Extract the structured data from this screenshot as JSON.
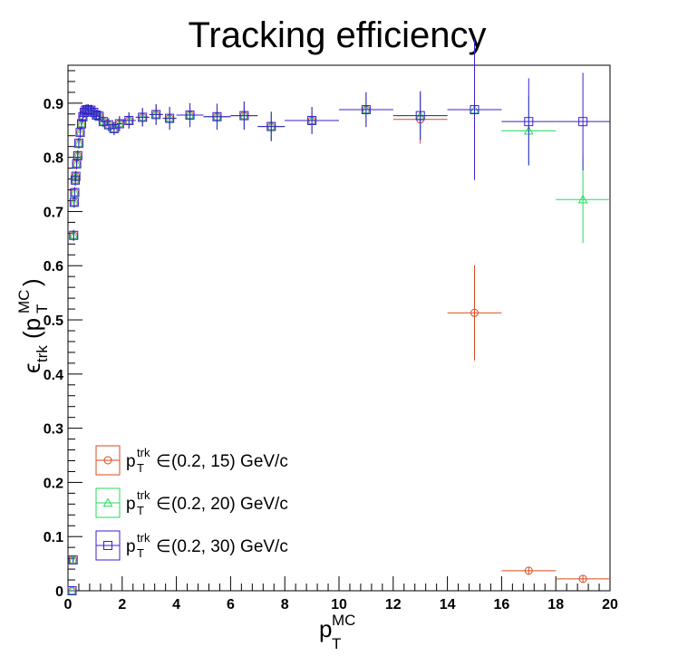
{
  "chart_data": {
    "type": "scatter",
    "title": "Tracking efficiency",
    "xlabel": {
      "main": "p",
      "sup": "MC",
      "sub": "T"
    },
    "ylabel": {
      "eps": "ϵ",
      "eps_sub": "trk",
      "open": "(p",
      "sup": "MC",
      "sub": "T",
      "close": ")"
    },
    "xlim": [
      0,
      20
    ],
    "ylim": [
      0,
      0.97
    ],
    "xticks": [
      0,
      2,
      4,
      6,
      8,
      10,
      12,
      14,
      16,
      18,
      20
    ],
    "yticks": [
      0,
      0.1,
      0.2,
      0.3,
      0.4,
      0.5,
      0.6,
      0.7,
      0.8,
      0.9
    ],
    "grid": false,
    "legend_position": "bottom-left",
    "series": [
      {
        "name": "(0.2, 15) GeV/c",
        "label_prefix": {
          "main": "p",
          "sup": "trk",
          "sub": "T",
          "in": "∈"
        },
        "marker": "circle",
        "color": "#d94a1e",
        "points": [
          {
            "x": 0.15,
            "y": 0.0,
            "xerr": 0.05,
            "yerr": 0.0
          },
          {
            "x": 0.19,
            "y": 0.057,
            "xerr": 0.01,
            "yerr": 0.005
          },
          {
            "x": 0.21,
            "y": 0.656,
            "xerr": 0.01,
            "yerr": 0.01
          },
          {
            "x": 0.23,
            "y": 0.717,
            "xerr": 0.01,
            "yerr": 0.01
          },
          {
            "x": 0.25,
            "y": 0.735,
            "xerr": 0.01,
            "yerr": 0.01
          },
          {
            "x": 0.27,
            "y": 0.758,
            "xerr": 0.01,
            "yerr": 0.01
          },
          {
            "x": 0.29,
            "y": 0.765,
            "xerr": 0.01,
            "yerr": 0.01
          },
          {
            "x": 0.32,
            "y": 0.788,
            "xerr": 0.02,
            "yerr": 0.01
          },
          {
            "x": 0.36,
            "y": 0.803,
            "xerr": 0.02,
            "yerr": 0.01
          },
          {
            "x": 0.4,
            "y": 0.826,
            "xerr": 0.02,
            "yerr": 0.01
          },
          {
            "x": 0.45,
            "y": 0.846,
            "xerr": 0.025,
            "yerr": 0.01
          },
          {
            "x": 0.5,
            "y": 0.862,
            "xerr": 0.025,
            "yerr": 0.01
          },
          {
            "x": 0.55,
            "y": 0.875,
            "xerr": 0.025,
            "yerr": 0.01
          },
          {
            "x": 0.6,
            "y": 0.883,
            "xerr": 0.025,
            "yerr": 0.01
          },
          {
            "x": 0.65,
            "y": 0.887,
            "xerr": 0.025,
            "yerr": 0.01
          },
          {
            "x": 0.7,
            "y": 0.888,
            "xerr": 0.025,
            "yerr": 0.01
          },
          {
            "x": 0.75,
            "y": 0.888,
            "xerr": 0.025,
            "yerr": 0.01
          },
          {
            "x": 0.85,
            "y": 0.887,
            "xerr": 0.05,
            "yerr": 0.01
          },
          {
            "x": 0.95,
            "y": 0.883,
            "xerr": 0.05,
            "yerr": 0.01
          },
          {
            "x": 1.05,
            "y": 0.878,
            "xerr": 0.05,
            "yerr": 0.01
          },
          {
            "x": 1.15,
            "y": 0.876,
            "xerr": 0.05,
            "yerr": 0.01
          },
          {
            "x": 1.3,
            "y": 0.866,
            "xerr": 0.1,
            "yerr": 0.01
          },
          {
            "x": 1.5,
            "y": 0.86,
            "xerr": 0.1,
            "yerr": 0.012
          },
          {
            "x": 1.7,
            "y": 0.853,
            "xerr": 0.1,
            "yerr": 0.012
          },
          {
            "x": 1.9,
            "y": 0.862,
            "xerr": 0.1,
            "yerr": 0.014
          },
          {
            "x": 2.25,
            "y": 0.868,
            "xerr": 0.25,
            "yerr": 0.015
          },
          {
            "x": 2.75,
            "y": 0.874,
            "xerr": 0.25,
            "yerr": 0.017
          },
          {
            "x": 3.25,
            "y": 0.879,
            "xerr": 0.25,
            "yerr": 0.019
          },
          {
            "x": 3.75,
            "y": 0.872,
            "xerr": 0.25,
            "yerr": 0.021
          },
          {
            "x": 4.5,
            "y": 0.878,
            "xerr": 0.5,
            "yerr": 0.022
          },
          {
            "x": 5.5,
            "y": 0.875,
            "xerr": 0.5,
            "yerr": 0.024
          },
          {
            "x": 6.5,
            "y": 0.877,
            "xerr": 0.5,
            "yerr": 0.026
          },
          {
            "x": 7.5,
            "y": 0.857,
            "xerr": 0.5,
            "yerr": 0.027
          },
          {
            "x": 9.0,
            "y": 0.868,
            "xerr": 1.0,
            "yerr": 0.025
          },
          {
            "x": 11.0,
            "y": 0.888,
            "xerr": 1.0,
            "yerr": 0.032
          },
          {
            "x": 13.0,
            "y": 0.87,
            "xerr": 1.0,
            "yerr": 0.045
          },
          {
            "x": 15.0,
            "y": 0.513,
            "xerr": 1.0,
            "yerr": 0.088
          },
          {
            "x": 17.0,
            "y": 0.037,
            "xerr": 1.0,
            "yerr": 0.007
          },
          {
            "x": 19.0,
            "y": 0.022,
            "xerr": 1.0,
            "yerr": 0.006
          }
        ]
      },
      {
        "name": "(0.2, 20) GeV/c",
        "label_prefix": {
          "main": "p",
          "sup": "trk",
          "sub": "T",
          "in": "∈"
        },
        "marker": "triangle",
        "color": "#22dd5a",
        "points": [
          {
            "x": 0.15,
            "y": 0.0,
            "xerr": 0.05,
            "yerr": 0.0
          },
          {
            "x": 0.19,
            "y": 0.057,
            "xerr": 0.01,
            "yerr": 0.005
          },
          {
            "x": 0.21,
            "y": 0.656,
            "xerr": 0.01,
            "yerr": 0.01
          },
          {
            "x": 0.23,
            "y": 0.717,
            "xerr": 0.01,
            "yerr": 0.01
          },
          {
            "x": 0.25,
            "y": 0.735,
            "xerr": 0.01,
            "yerr": 0.01
          },
          {
            "x": 0.27,
            "y": 0.758,
            "xerr": 0.01,
            "yerr": 0.01
          },
          {
            "x": 0.29,
            "y": 0.765,
            "xerr": 0.01,
            "yerr": 0.01
          },
          {
            "x": 0.32,
            "y": 0.788,
            "xerr": 0.02,
            "yerr": 0.01
          },
          {
            "x": 0.36,
            "y": 0.803,
            "xerr": 0.02,
            "yerr": 0.01
          },
          {
            "x": 0.4,
            "y": 0.826,
            "xerr": 0.02,
            "yerr": 0.01
          },
          {
            "x": 0.45,
            "y": 0.846,
            "xerr": 0.025,
            "yerr": 0.01
          },
          {
            "x": 0.5,
            "y": 0.862,
            "xerr": 0.025,
            "yerr": 0.01
          },
          {
            "x": 0.55,
            "y": 0.875,
            "xerr": 0.025,
            "yerr": 0.01
          },
          {
            "x": 0.6,
            "y": 0.883,
            "xerr": 0.025,
            "yerr": 0.01
          },
          {
            "x": 0.65,
            "y": 0.887,
            "xerr": 0.025,
            "yerr": 0.01
          },
          {
            "x": 0.7,
            "y": 0.888,
            "xerr": 0.025,
            "yerr": 0.01
          },
          {
            "x": 0.75,
            "y": 0.888,
            "xerr": 0.025,
            "yerr": 0.01
          },
          {
            "x": 0.85,
            "y": 0.887,
            "xerr": 0.05,
            "yerr": 0.01
          },
          {
            "x": 0.95,
            "y": 0.883,
            "xerr": 0.05,
            "yerr": 0.01
          },
          {
            "x": 1.05,
            "y": 0.878,
            "xerr": 0.05,
            "yerr": 0.01
          },
          {
            "x": 1.15,
            "y": 0.876,
            "xerr": 0.05,
            "yerr": 0.01
          },
          {
            "x": 1.3,
            "y": 0.866,
            "xerr": 0.1,
            "yerr": 0.01
          },
          {
            "x": 1.5,
            "y": 0.86,
            "xerr": 0.1,
            "yerr": 0.012
          },
          {
            "x": 1.7,
            "y": 0.853,
            "xerr": 0.1,
            "yerr": 0.012
          },
          {
            "x": 1.9,
            "y": 0.862,
            "xerr": 0.1,
            "yerr": 0.014
          },
          {
            "x": 2.25,
            "y": 0.868,
            "xerr": 0.25,
            "yerr": 0.015
          },
          {
            "x": 2.75,
            "y": 0.874,
            "xerr": 0.25,
            "yerr": 0.017
          },
          {
            "x": 3.25,
            "y": 0.879,
            "xerr": 0.25,
            "yerr": 0.019
          },
          {
            "x": 3.75,
            "y": 0.872,
            "xerr": 0.25,
            "yerr": 0.021
          },
          {
            "x": 4.5,
            "y": 0.878,
            "xerr": 0.5,
            "yerr": 0.022
          },
          {
            "x": 5.5,
            "y": 0.875,
            "xerr": 0.5,
            "yerr": 0.024
          },
          {
            "x": 6.5,
            "y": 0.877,
            "xerr": 0.5,
            "yerr": 0.026
          },
          {
            "x": 7.5,
            "y": 0.857,
            "xerr": 0.5,
            "yerr": 0.027
          },
          {
            "x": 9.0,
            "y": 0.868,
            "xerr": 1.0,
            "yerr": 0.025
          },
          {
            "x": 11.0,
            "y": 0.888,
            "xerr": 1.0,
            "yerr": 0.032
          },
          {
            "x": 13.0,
            "y": 0.877,
            "xerr": 1.0,
            "yerr": 0.045
          },
          {
            "x": 15.0,
            "y": 0.888,
            "xerr": 1.0,
            "yerr": 0.065
          },
          {
            "x": 17.0,
            "y": 0.849,
            "xerr": 1.0,
            "yerr": 0.065
          },
          {
            "x": 19.0,
            "y": 0.722,
            "xerr": 1.0,
            "yerr": 0.08
          }
        ]
      },
      {
        "name": "(0.2, 30) GeV/c",
        "label_prefix": {
          "main": "p",
          "sup": "trk",
          "sub": "T",
          "in": "∈"
        },
        "marker": "square",
        "color": "#3a1fd4",
        "points": [
          {
            "x": 0.15,
            "y": 0.0,
            "xerr": 0.05,
            "yerr": 0.0
          },
          {
            "x": 0.19,
            "y": 0.057,
            "xerr": 0.01,
            "yerr": 0.005
          },
          {
            "x": 0.21,
            "y": 0.656,
            "xerr": 0.01,
            "yerr": 0.01
          },
          {
            "x": 0.23,
            "y": 0.717,
            "xerr": 0.01,
            "yerr": 0.01
          },
          {
            "x": 0.25,
            "y": 0.735,
            "xerr": 0.01,
            "yerr": 0.01
          },
          {
            "x": 0.27,
            "y": 0.758,
            "xerr": 0.01,
            "yerr": 0.01
          },
          {
            "x": 0.29,
            "y": 0.765,
            "xerr": 0.01,
            "yerr": 0.01
          },
          {
            "x": 0.32,
            "y": 0.788,
            "xerr": 0.02,
            "yerr": 0.01
          },
          {
            "x": 0.36,
            "y": 0.803,
            "xerr": 0.02,
            "yerr": 0.01
          },
          {
            "x": 0.4,
            "y": 0.826,
            "xerr": 0.02,
            "yerr": 0.01
          },
          {
            "x": 0.45,
            "y": 0.846,
            "xerr": 0.025,
            "yerr": 0.01
          },
          {
            "x": 0.5,
            "y": 0.862,
            "xerr": 0.025,
            "yerr": 0.01
          },
          {
            "x": 0.55,
            "y": 0.875,
            "xerr": 0.025,
            "yerr": 0.01
          },
          {
            "x": 0.6,
            "y": 0.883,
            "xerr": 0.025,
            "yerr": 0.01
          },
          {
            "x": 0.65,
            "y": 0.887,
            "xerr": 0.025,
            "yerr": 0.01
          },
          {
            "x": 0.7,
            "y": 0.888,
            "xerr": 0.025,
            "yerr": 0.01
          },
          {
            "x": 0.75,
            "y": 0.888,
            "xerr": 0.025,
            "yerr": 0.01
          },
          {
            "x": 0.85,
            "y": 0.887,
            "xerr": 0.05,
            "yerr": 0.01
          },
          {
            "x": 0.95,
            "y": 0.883,
            "xerr": 0.05,
            "yerr": 0.01
          },
          {
            "x": 1.05,
            "y": 0.878,
            "xerr": 0.05,
            "yerr": 0.01
          },
          {
            "x": 1.15,
            "y": 0.876,
            "xerr": 0.05,
            "yerr": 0.01
          },
          {
            "x": 1.3,
            "y": 0.866,
            "xerr": 0.1,
            "yerr": 0.01
          },
          {
            "x": 1.5,
            "y": 0.86,
            "xerr": 0.1,
            "yerr": 0.012
          },
          {
            "x": 1.7,
            "y": 0.853,
            "xerr": 0.1,
            "yerr": 0.012
          },
          {
            "x": 1.9,
            "y": 0.862,
            "xerr": 0.1,
            "yerr": 0.014
          },
          {
            "x": 2.25,
            "y": 0.868,
            "xerr": 0.25,
            "yerr": 0.015
          },
          {
            "x": 2.75,
            "y": 0.874,
            "xerr": 0.25,
            "yerr": 0.017
          },
          {
            "x": 3.25,
            "y": 0.879,
            "xerr": 0.25,
            "yerr": 0.019
          },
          {
            "x": 3.75,
            "y": 0.872,
            "xerr": 0.25,
            "yerr": 0.021
          },
          {
            "x": 4.5,
            "y": 0.878,
            "xerr": 0.5,
            "yerr": 0.022
          },
          {
            "x": 5.5,
            "y": 0.875,
            "xerr": 0.5,
            "yerr": 0.024
          },
          {
            "x": 6.5,
            "y": 0.877,
            "xerr": 0.5,
            "yerr": 0.026
          },
          {
            "x": 7.5,
            "y": 0.857,
            "xerr": 0.5,
            "yerr": 0.027
          },
          {
            "x": 9.0,
            "y": 0.868,
            "xerr": 1.0,
            "yerr": 0.025
          },
          {
            "x": 11.0,
            "y": 0.888,
            "xerr": 1.0,
            "yerr": 0.032
          },
          {
            "x": 13.0,
            "y": 0.877,
            "xerr": 1.0,
            "yerr": 0.045
          },
          {
            "x": 15.0,
            "y": 0.888,
            "xerr": 1.0,
            "yerr": 0.13
          },
          {
            "x": 17.0,
            "y": 0.866,
            "xerr": 1.0,
            "yerr": 0.08
          },
          {
            "x": 19.0,
            "y": 0.866,
            "xerr": 1.0,
            "yerr": 0.09
          }
        ]
      }
    ]
  }
}
